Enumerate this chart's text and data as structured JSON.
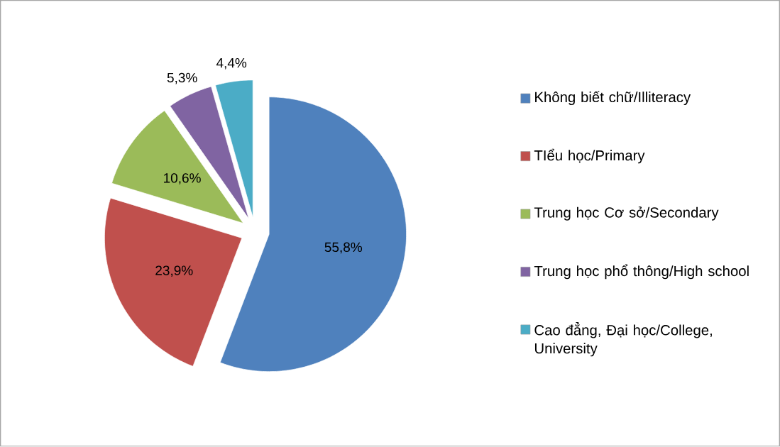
{
  "chart_data": {
    "type": "pie",
    "categories": [
      "Không biết chữ/Illiteracy",
      "TIểu học/Primary",
      "Trung học Cơ sở/Secondary",
      "Trung học phổ thông/High school",
      "Cao đẳng, Đại học/College, University"
    ],
    "values": [
      55.8,
      23.9,
      10.6,
      5.3,
      4.4
    ],
    "colors": [
      "#4f81bd",
      "#c0504d",
      "#9bbb59",
      "#8064a2",
      "#4bacc6"
    ],
    "value_labels": [
      "55,8%",
      "23,9%",
      "10,6%",
      "5,3%",
      "4,4%"
    ],
    "legend": "right"
  }
}
